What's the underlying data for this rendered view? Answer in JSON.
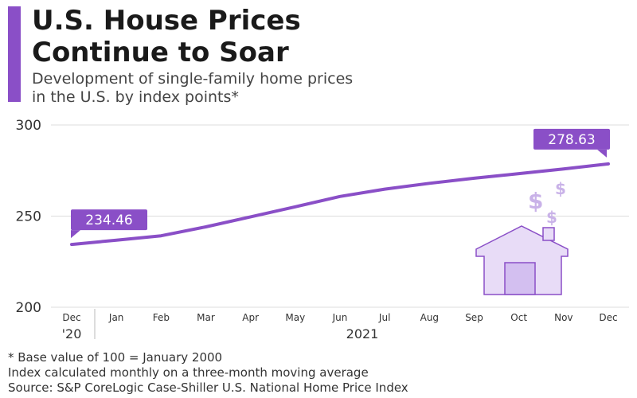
{
  "header": {
    "title_line1": "U.S. House Prices",
    "title_line2": "Continue to Soar",
    "subtitle_line1": "Development of single-family home prices",
    "subtitle_line2": "in the U.S. by index points*"
  },
  "footer": {
    "note1": "* Base value of 100 = January 2000",
    "note2": "Index calculated monthly on a three-month moving average",
    "source": "Source: S&P CoreLogic Case-Shiller U.S. National Home Price Index"
  },
  "colors": {
    "accent": "#8a4fc7",
    "line": "#8a4fc7",
    "grid": "#dddddd",
    "illustration": "#c9b2e8"
  },
  "icons": [
    "house-icon",
    "dollar-sign-icon"
  ],
  "chart_data": {
    "type": "line",
    "title": "",
    "xlabel": "",
    "ylabel": "",
    "categories": [
      "Dec '20",
      "Jan",
      "Feb",
      "Mar",
      "Apr",
      "May",
      "Jun",
      "Jul",
      "Aug",
      "Sep",
      "Oct",
      "Nov",
      "Dec"
    ],
    "tick_labels": [
      "Dec",
      "Jan",
      "Feb",
      "Mar",
      "Apr",
      "May",
      "Jun",
      "Jul",
      "Aug",
      "Sep",
      "Oct",
      "Nov",
      "Dec"
    ],
    "year_labels": [
      "'20",
      "2021"
    ],
    "y_ticks": [
      200,
      250,
      300
    ],
    "ylim": [
      200,
      300
    ],
    "grid": true,
    "series": [
      {
        "values": [
          234.46,
          236.8,
          239.2,
          244.1,
          249.6,
          255.1,
          260.8,
          264.8,
          268.0,
          270.8,
          273.3,
          275.9,
          278.63
        ]
      }
    ],
    "annotations": [
      {
        "index": 0,
        "label": "234.46"
      },
      {
        "index": 12,
        "label": "278.63"
      }
    ]
  }
}
